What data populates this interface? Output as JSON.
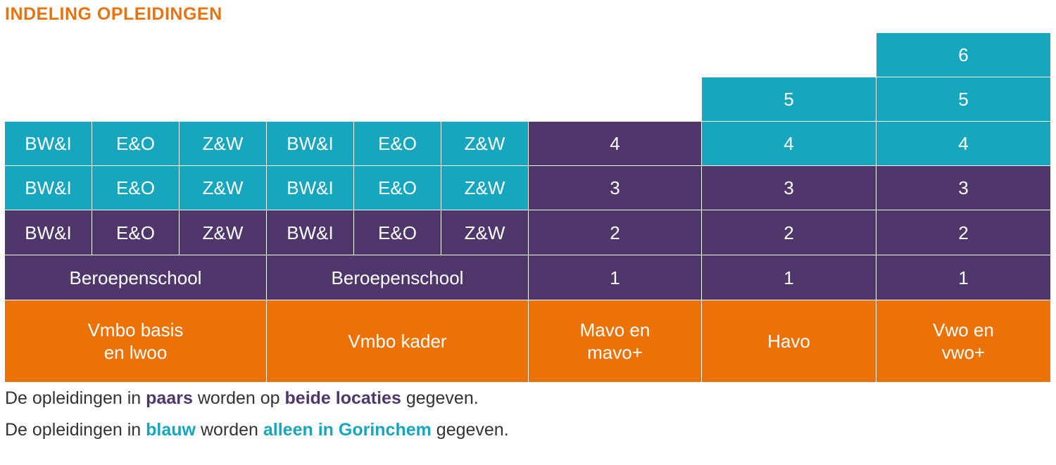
{
  "title": "INDELING OPLEIDINGEN",
  "colors": {
    "teal": "#16a6bd",
    "purple": "#4f366b",
    "orange": "#ec7208",
    "title": "#e8730f"
  },
  "labels": {
    "bwi": "BW&I",
    "eo": "E&O",
    "zw": "Z&W",
    "beroepenschool": "Beroepenschool"
  },
  "years": {
    "y1": "1",
    "y2": "2",
    "y3": "3",
    "y4": "4",
    "y5": "5",
    "y6": "6"
  },
  "tracks": {
    "vmbo_basis_l1": "Vmbo basis",
    "vmbo_basis_l2": "en lwoo",
    "vmbo_kader": "Vmbo kader",
    "mavo_l1": "Mavo en",
    "mavo_l2": "mavo+",
    "havo": "Havo",
    "vwo_l1": "Vwo en",
    "vwo_l2": "vwo+"
  },
  "legend": {
    "line1": {
      "pre": "De opleidingen in ",
      "color_word": "paars",
      "mid": " worden op ",
      "emphasis": "beide locaties",
      "post": " gegeven."
    },
    "line2": {
      "pre": "De opleidingen in ",
      "color_word": "blauw",
      "mid": " worden ",
      "emphasis": "alleen in Gorinchem",
      "post": " gegeven."
    }
  }
}
